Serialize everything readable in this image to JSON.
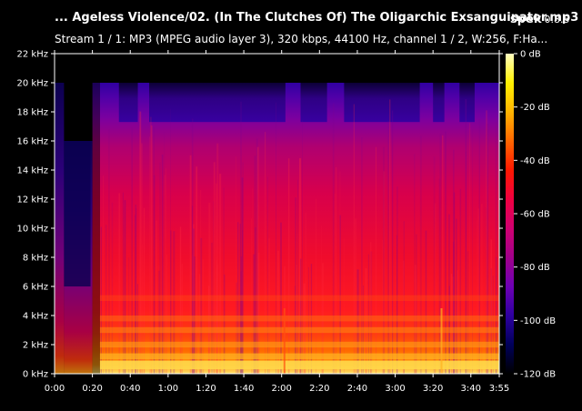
{
  "header": {
    "file_title": "... Ageless Violence/02. (In The Clutches Of) The Oligarchic Exsanguinator.mp3",
    "app_name": "spek",
    "app_version": "0.8.5",
    "stream_info": "Stream 1 / 1: MP3 (MPEG audio layer 3), 320 kbps, 44100 Hz, channel 1 / 2, W:256, F:Ha..."
  },
  "chart_data": {
    "type": "heatmap",
    "title": "",
    "xlabel": "",
    "ylabel": "",
    "x_ticks": [
      "0:00",
      "0:20",
      "0:40",
      "1:00",
      "1:20",
      "1:40",
      "2:00",
      "2:20",
      "2:40",
      "3:00",
      "3:20",
      "3:40",
      "3:55"
    ],
    "x_tick_seconds": [
      0,
      20,
      40,
      60,
      80,
      100,
      120,
      140,
      160,
      180,
      200,
      220,
      235
    ],
    "xlim_seconds": [
      0,
      235
    ],
    "y_ticks": [
      "0 kHz",
      "2 kHz",
      "4 kHz",
      "6 kHz",
      "8 kHz",
      "10 kHz",
      "12 kHz",
      "14 kHz",
      "16 kHz",
      "18 kHz",
      "20 kHz",
      "22 kHz"
    ],
    "y_tick_khz": [
      0,
      2,
      4,
      6,
      8,
      10,
      12,
      14,
      16,
      18,
      20,
      22
    ],
    "ylim_khz": [
      0,
      22
    ],
    "colorbar": {
      "ticks": [
        "0 dB",
        "-20 dB",
        "-40 dB",
        "-60 dB",
        "-80 dB",
        "-100 dB",
        "-120 dB"
      ],
      "tick_db": [
        0,
        -20,
        -40,
        -60,
        -80,
        -100,
        -120
      ],
      "range_db": [
        -120,
        0
      ],
      "palette": [
        "#000000",
        "#00005a",
        "#2e00a0",
        "#6e00b4",
        "#a1008a",
        "#d00070",
        "#f00040",
        "#ff1800",
        "#ff6600",
        "#ffb400",
        "#fff000",
        "#ffffc0"
      ]
    },
    "cutoff_khz": {
      "0:00-0:05": 20,
      "0:05-0:20": 16,
      "0:20-3:55": 20
    }
  }
}
